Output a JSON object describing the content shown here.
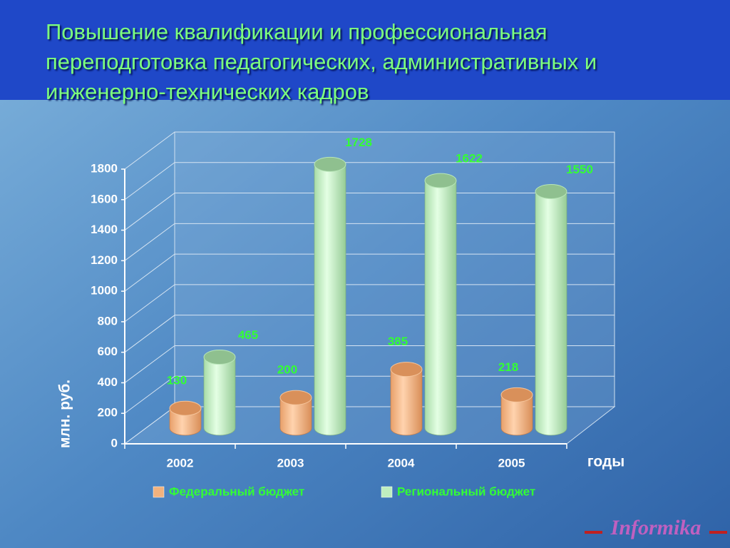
{
  "chart_data": {
    "type": "bar",
    "title": "Повышение квалификации и профессиональная переподготовка педагогических, административных и инженерно-технических кадров",
    "y_label": "млн. руб.",
    "x_label": "годы",
    "categories": [
      "2002",
      "2003",
      "2004",
      "2005"
    ],
    "series": [
      {
        "name": "Федеральный бюджет",
        "color": "#f2b27e",
        "values": [
          130,
          200,
          385,
          218
        ]
      },
      {
        "name": "Региональный бюджет",
        "color": "#bfeebf",
        "values": [
          465,
          1728,
          1622,
          1550
        ]
      }
    ],
    "ylim": [
      0,
      1800
    ],
    "yticks": [
      0,
      200,
      400,
      600,
      800,
      1000,
      1200,
      1400,
      1600,
      1800
    ],
    "grid": true
  },
  "logo": "Informika"
}
